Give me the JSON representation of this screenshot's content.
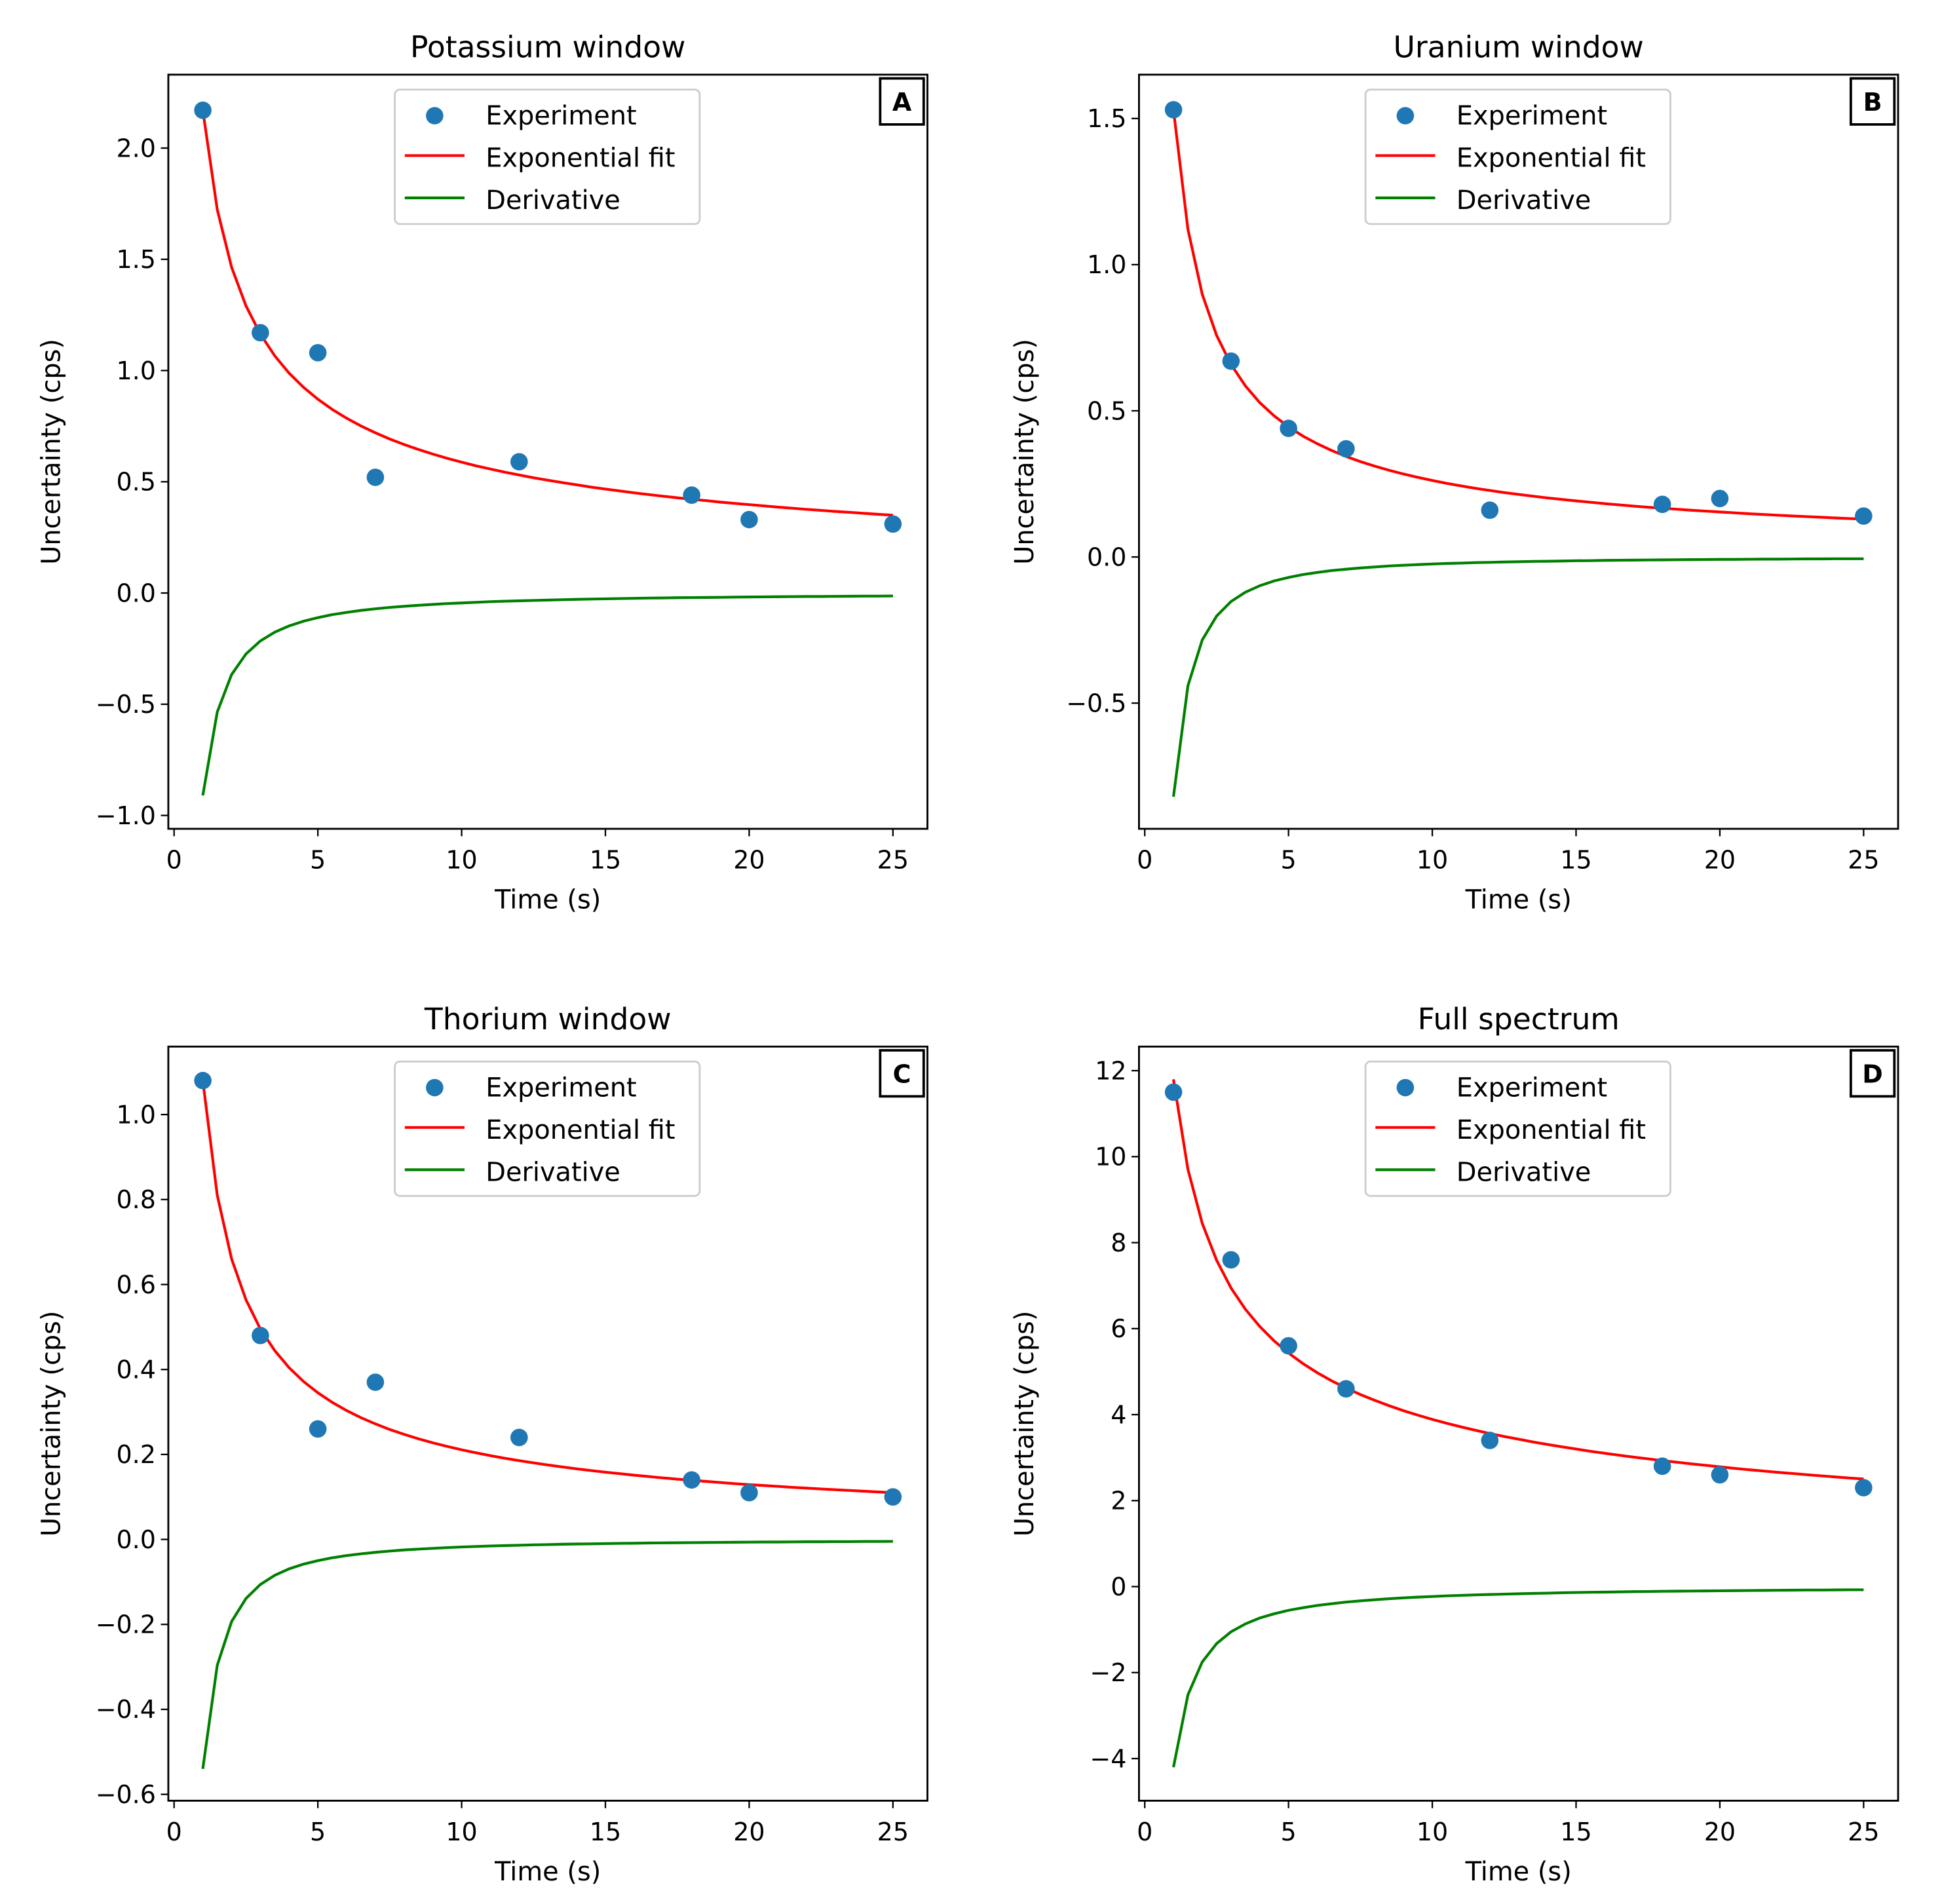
{
  "chart_data": [
    {
      "type": "scatter+line",
      "panel_label": "A",
      "title": "Potassium window",
      "xlabel": "Time (s)",
      "ylabel": "Uncertainty (cps)",
      "xlim": [
        -0.2,
        26.2
      ],
      "ylim": [
        -1.06,
        2.33
      ],
      "xticks": [
        0,
        5,
        10,
        15,
        20,
        25
      ],
      "yticks": [
        -1.0,
        -0.5,
        0.0,
        0.5,
        1.0,
        1.5,
        2.0
      ],
      "ytick_labels": [
        "−1.0",
        "−0.5",
        "0.0",
        "0.5",
        "1.0",
        "1.5",
        "2.0"
      ],
      "legend": {
        "placement": "upper-center",
        "entries": [
          "Experiment",
          "Exponential fit",
          "Derivative"
        ]
      },
      "experiment": {
        "x": [
          1,
          3,
          5,
          7,
          12,
          18,
          20,
          25
        ],
        "y": [
          2.17,
          1.17,
          1.08,
          0.52,
          0.59,
          0.44,
          0.33,
          0.31
        ]
      },
      "fit": {
        "model": "y = a * x^(-b)",
        "a": 2.17,
        "b": 0.567,
        "x_range": [
          1,
          25
        ]
      },
      "derivative": {
        "model": "y = -c * x^(-d)",
        "c": 0.91,
        "d": 1.31,
        "x_range": [
          1,
          25
        ]
      }
    },
    {
      "type": "scatter+line",
      "panel_label": "B",
      "title": "Uranium window",
      "xlabel": "Time (s)",
      "ylabel": "Uncertainty (cps)",
      "xlim": [
        -0.2,
        26.2
      ],
      "ylim": [
        -0.93,
        1.65
      ],
      "xticks": [
        0,
        5,
        10,
        15,
        20,
        25
      ],
      "yticks": [
        -0.5,
        0.0,
        0.5,
        1.0,
        1.5
      ],
      "ytick_labels": [
        "−0.5",
        "0.0",
        "0.5",
        "1.0",
        "1.5"
      ],
      "legend": {
        "placement": "upper-center",
        "entries": [
          "Experiment",
          " Exponential fit",
          "Derivative"
        ]
      },
      "experiment": {
        "x": [
          1,
          3,
          5,
          7,
          12,
          18,
          20,
          25
        ],
        "y": [
          1.53,
          0.67,
          0.44,
          0.37,
          0.16,
          0.18,
          0.2,
          0.14
        ]
      },
      "fit": {
        "model": "y = a * x^(-b)",
        "a": 1.53,
        "b": 0.767,
        "x_range": [
          1,
          25
        ]
      },
      "derivative": {
        "model": "y = -c * x^(-d)",
        "c": 0.82,
        "d": 1.53,
        "x_range": [
          1,
          25
        ]
      }
    },
    {
      "type": "scatter+line",
      "panel_label": "C",
      "title": "Thorium window",
      "xlabel": "Time (s)",
      "ylabel": "Uncertainty (cps)",
      "xlim": [
        -0.2,
        26.2
      ],
      "ylim": [
        -0.615,
        1.16
      ],
      "xticks": [
        0,
        5,
        10,
        15,
        20,
        25
      ],
      "yticks": [
        -0.6,
        -0.4,
        -0.2,
        0.0,
        0.2,
        0.4,
        0.6,
        0.8,
        1.0
      ],
      "ytick_labels": [
        "−0.6",
        "−0.4",
        "−0.2",
        "0.0",
        "0.2",
        "0.4",
        "0.6",
        "0.8",
        "1.0"
      ],
      "legend": {
        "placement": "upper-center",
        "entries": [
          "Experiment",
          " Exponential fit",
          "Derivative"
        ]
      },
      "experiment": {
        "x": [
          1,
          3,
          5,
          7,
          12,
          18,
          20,
          25
        ],
        "y": [
          1.08,
          0.48,
          0.26,
          0.37,
          0.24,
          0.14,
          0.11,
          0.1
        ]
      },
      "fit": {
        "model": "y = a * x^(-b)",
        "a": 1.08,
        "b": 0.709,
        "x_range": [
          1,
          25
        ]
      },
      "derivative": {
        "model": "y = -c * x^(-d)",
        "c": 0.54,
        "d": 1.48,
        "x_range": [
          1,
          25
        ]
      }
    },
    {
      "type": "scatter+line",
      "panel_label": "D",
      "title": "Full spectrum",
      "xlabel": "Time (s)",
      "ylabel": "Uncertainty (cps)",
      "xlim": [
        -0.2,
        26.2
      ],
      "ylim": [
        -4.98,
        12.56
      ],
      "xticks": [
        0,
        5,
        10,
        15,
        20,
        25
      ],
      "yticks": [
        -4,
        -2,
        0,
        2,
        4,
        6,
        8,
        10,
        12
      ],
      "ytick_labels": [
        "−4",
        "−2",
        "0",
        "2",
        "4",
        "6",
        "8",
        "10",
        "12"
      ],
      "legend": {
        "placement": "upper-center",
        "entries": [
          "Experiment",
          "Exponential fit",
          "Derivative"
        ]
      },
      "experiment": {
        "x": [
          1,
          3,
          5,
          7,
          12,
          18,
          20,
          25
        ],
        "y": [
          11.5,
          7.6,
          5.6,
          4.6,
          3.4,
          2.8,
          2.6,
          2.3
        ]
      },
      "fit": {
        "model": "y = a * x^(-b)",
        "a": 11.8,
        "b": 0.482,
        "x_range": [
          1,
          25
        ]
      },
      "derivative": {
        "model": "y = -c * x^(-d)",
        "c": 4.2,
        "d": 1.26,
        "x_range": [
          1,
          25
        ]
      }
    }
  ],
  "colors": {
    "experiment": "#1f77b4",
    "fit": "#ff0000",
    "derivative": "#008000",
    "axes": "#000000",
    "legend_border": "#cccccc"
  }
}
